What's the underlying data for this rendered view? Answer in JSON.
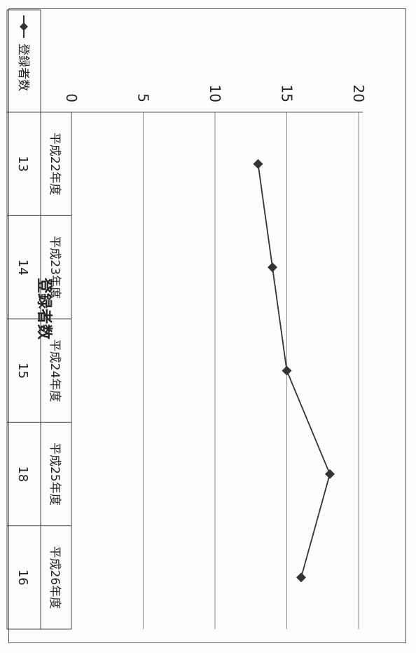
{
  "chart_data": {
    "type": "line",
    "title": "登録者数",
    "categories": [
      "平成22年度",
      "平成23年度",
      "平成24年度",
      "平成25年度",
      "平成26年度"
    ],
    "series": [
      {
        "name": "登録者数",
        "values": [
          13,
          14,
          15,
          18,
          16
        ],
        "color": "#333333"
      }
    ],
    "yticks": [
      "0",
      "5",
      "10",
      "15",
      "20"
    ],
    "ylim": [
      0,
      20
    ],
    "grid": true,
    "marker": "diamond",
    "data_table": true,
    "legend": "data-table-left",
    "orientation": "rotated-90-clockwise"
  }
}
